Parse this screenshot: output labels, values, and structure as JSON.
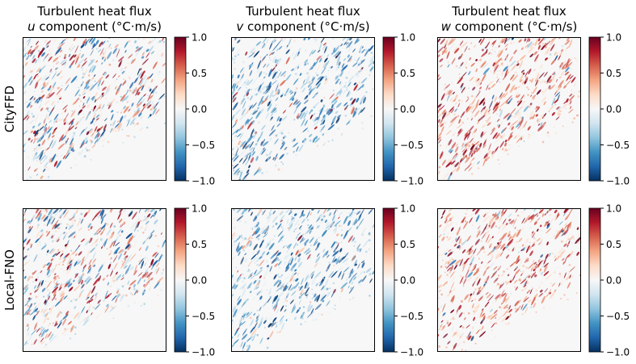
{
  "chart_data": {
    "type": "heatmap",
    "colormap": "RdBu_r",
    "value_range": [
      -1.0,
      1.0
    ],
    "columns": [
      {
        "title_line1": "Turbulent heat flux",
        "var": "u",
        "title_rest": " component (°C·m/s)",
        "dominant_sign": "mixed"
      },
      {
        "title_line1": "Turbulent heat flux",
        "var": "v",
        "title_rest": " component (°C·m/s)",
        "dominant_sign": "negative"
      },
      {
        "title_line1": "Turbulent heat flux",
        "var": "w",
        "title_rest": " component (°C·m/s)",
        "dominant_sign": "positive"
      }
    ],
    "rows": [
      {
        "label": "CityFFD"
      },
      {
        "label": "Local-FNO"
      }
    ],
    "colorbar_ticks": [
      {
        "value": 1.0,
        "label": "1.0"
      },
      {
        "value": 0.5,
        "label": "0.5"
      },
      {
        "value": 0.0,
        "label": "0.0"
      },
      {
        "value": -0.5,
        "label": "−0.5"
      },
      {
        "value": -1.0,
        "label": "−1.0"
      }
    ]
  }
}
